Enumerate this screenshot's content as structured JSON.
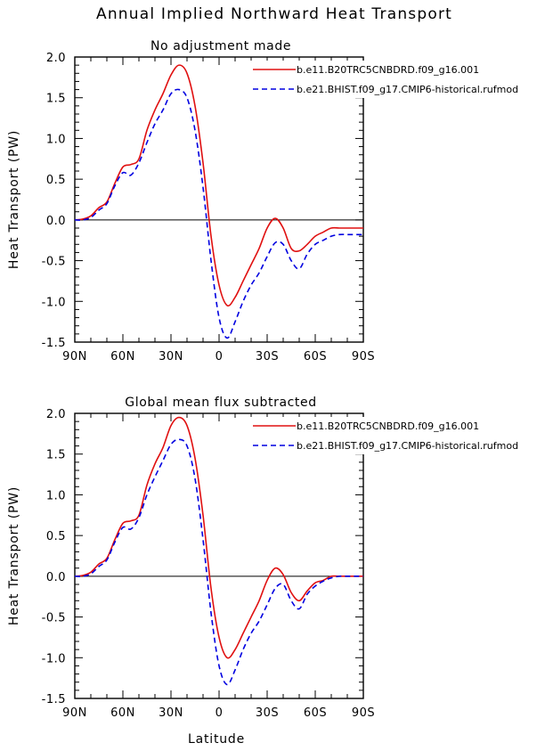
{
  "title": "Annual Implied Northward Heat Transport",
  "xlabel": "Latitude",
  "colors": {
    "series1": "#e01010",
    "series2": "#0000e0",
    "zero_line": "#000000",
    "frame": "#000000"
  },
  "chart_data": [
    {
      "type": "line",
      "title": "No adjustment made",
      "ylabel": "Heat Transport (PW)",
      "xlim": [
        90,
        -90
      ],
      "ylim": [
        -1.5,
        2.0
      ],
      "x_ticks": [
        90,
        60,
        30,
        0,
        -30,
        -60,
        -90
      ],
      "x_tick_labels": [
        "90N",
        "60N",
        "30N",
        "0",
        "30S",
        "60S",
        "90S"
      ],
      "y_ticks": [
        2.0,
        1.5,
        1.0,
        0.5,
        0.0,
        -0.5,
        -1.0,
        -1.5
      ],
      "y_tick_labels": [
        "2.0",
        "1.5",
        "1.0",
        "0.5",
        "0.0",
        "-0.5",
        "-1.0",
        "-1.5"
      ],
      "legend_position": "top-right",
      "series": [
        {
          "name": "b.e11.B20TRC5CNBDRD.f09_g16.001",
          "style": "solid",
          "x": [
            90,
            85,
            80,
            75,
            70,
            65,
            60,
            55,
            50,
            45,
            40,
            35,
            30,
            25,
            20,
            15,
            10,
            5,
            0,
            -5,
            -10,
            -15,
            -20,
            -25,
            -30,
            -35,
            -40,
            -45,
            -50,
            -55,
            -60,
            -65,
            -70,
            -75,
            -80,
            -85,
            -90
          ],
          "values": [
            0.0,
            0.01,
            0.05,
            0.15,
            0.22,
            0.45,
            0.65,
            0.68,
            0.75,
            1.1,
            1.35,
            1.55,
            1.78,
            1.9,
            1.8,
            1.4,
            0.7,
            -0.2,
            -0.8,
            -1.05,
            -0.95,
            -0.75,
            -0.55,
            -0.35,
            -0.1,
            0.02,
            -0.1,
            -0.35,
            -0.38,
            -0.3,
            -0.2,
            -0.15,
            -0.1,
            -0.1,
            -0.1,
            -0.1,
            -0.1
          ]
        },
        {
          "name": "b.e21.BHIST.f09_g17.CMIP6-historical.rufmod",
          "style": "dashed",
          "x": [
            90,
            85,
            80,
            75,
            70,
            65,
            60,
            55,
            50,
            45,
            40,
            35,
            30,
            25,
            20,
            15,
            10,
            5,
            0,
            -5,
            -10,
            -15,
            -20,
            -25,
            -30,
            -35,
            -40,
            -45,
            -50,
            -55,
            -60,
            -65,
            -70,
            -75,
            -80,
            -85,
            -90
          ],
          "values": [
            0.0,
            0.0,
            0.03,
            0.12,
            0.2,
            0.42,
            0.58,
            0.55,
            0.7,
            0.95,
            1.18,
            1.35,
            1.55,
            1.6,
            1.5,
            1.1,
            0.4,
            -0.5,
            -1.2,
            -1.45,
            -1.25,
            -1.0,
            -0.8,
            -0.65,
            -0.45,
            -0.28,
            -0.3,
            -0.5,
            -0.6,
            -0.42,
            -0.3,
            -0.25,
            -0.2,
            -0.18,
            -0.18,
            -0.18,
            -0.18
          ]
        }
      ]
    },
    {
      "type": "line",
      "title": "Global mean flux subtracted",
      "ylabel": "Heat Transport (PW)",
      "xlim": [
        90,
        -90
      ],
      "ylim": [
        -1.5,
        2.0
      ],
      "x_ticks": [
        90,
        60,
        30,
        0,
        -30,
        -60,
        -90
      ],
      "x_tick_labels": [
        "90N",
        "60N",
        "30N",
        "0",
        "30S",
        "60S",
        "90S"
      ],
      "y_ticks": [
        2.0,
        1.5,
        1.0,
        0.5,
        0.0,
        -0.5,
        -1.0,
        -1.5
      ],
      "y_tick_labels": [
        "2.0",
        "1.5",
        "1.0",
        "0.5",
        "0.0",
        "-0.5",
        "-1.0",
        "-1.5"
      ],
      "legend_position": "top-right",
      "series": [
        {
          "name": "b.e11.B20TRC5CNBDRD.f09_g16.001",
          "style": "solid",
          "x": [
            90,
            85,
            80,
            75,
            70,
            65,
            60,
            55,
            50,
            45,
            40,
            35,
            30,
            25,
            20,
            15,
            10,
            5,
            0,
            -5,
            -10,
            -15,
            -20,
            -25,
            -30,
            -35,
            -40,
            -45,
            -50,
            -55,
            -60,
            -65,
            -70,
            -75,
            -80,
            -85,
            -90
          ],
          "values": [
            0.0,
            0.01,
            0.05,
            0.15,
            0.22,
            0.45,
            0.65,
            0.68,
            0.75,
            1.12,
            1.38,
            1.58,
            1.85,
            1.95,
            1.85,
            1.45,
            0.75,
            -0.15,
            -0.75,
            -1.0,
            -0.9,
            -0.7,
            -0.5,
            -0.3,
            -0.05,
            0.1,
            0.02,
            -0.2,
            -0.3,
            -0.18,
            -0.08,
            -0.05,
            0.0,
            0.0,
            0.0,
            0.0,
            0.0
          ]
        },
        {
          "name": "b.e21.BHIST.f09_g17.CMIP6-historical.rufmod",
          "style": "dashed",
          "x": [
            90,
            85,
            80,
            75,
            70,
            65,
            60,
            55,
            50,
            45,
            40,
            35,
            30,
            25,
            20,
            15,
            10,
            5,
            0,
            -5,
            -10,
            -15,
            -20,
            -25,
            -30,
            -35,
            -40,
            -45,
            -50,
            -55,
            -60,
            -65,
            -70,
            -75,
            -80,
            -85,
            -90
          ],
          "values": [
            0.0,
            0.0,
            0.03,
            0.12,
            0.2,
            0.42,
            0.6,
            0.58,
            0.72,
            1.0,
            1.22,
            1.42,
            1.62,
            1.68,
            1.6,
            1.2,
            0.45,
            -0.45,
            -1.1,
            -1.33,
            -1.15,
            -0.9,
            -0.7,
            -0.55,
            -0.35,
            -0.15,
            -0.1,
            -0.3,
            -0.4,
            -0.22,
            -0.12,
            -0.06,
            -0.02,
            0.0,
            0.0,
            0.0,
            0.0
          ]
        }
      ]
    }
  ]
}
